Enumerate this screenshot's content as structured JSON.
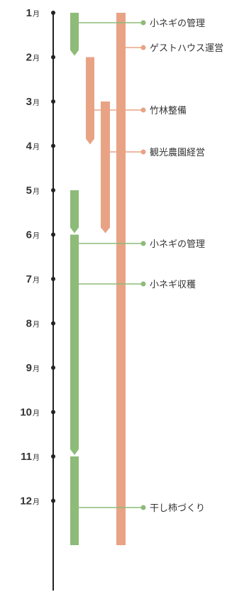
{
  "colors": {
    "green": "#8dbb78",
    "orange": "#e8a385",
    "axis": "#222222",
    "text": "#333333"
  },
  "month_unit": "月",
  "months": [
    {
      "num": "1"
    },
    {
      "num": "2"
    },
    {
      "num": "3"
    },
    {
      "num": "4"
    },
    {
      "num": "5"
    },
    {
      "num": "6"
    },
    {
      "num": "7"
    },
    {
      "num": "8"
    },
    {
      "num": "9"
    },
    {
      "num": "10"
    },
    {
      "num": "11"
    },
    {
      "num": "12"
    }
  ],
  "bars": [
    {
      "id": "green-negi-1",
      "color": "green",
      "start": 1.0,
      "end": 2.0,
      "arrow": true
    },
    {
      "id": "green-negi-2",
      "color": "green",
      "start": 5.0,
      "end": 6.0,
      "arrow": true
    },
    {
      "id": "green-negi-3",
      "color": "green",
      "start": 6.0,
      "end": 11.0,
      "arrow": true
    },
    {
      "id": "green-kaki",
      "color": "green",
      "start": 11.0,
      "end": 13.0,
      "arrow": false
    },
    {
      "id": "orange-guesthouse",
      "color": "orange",
      "start": 1.0,
      "end": 13.0,
      "arrow": false
    },
    {
      "id": "orange-bamboo",
      "color": "orange",
      "start": 2.0,
      "end": 4.0,
      "arrow": true
    },
    {
      "id": "orange-farm",
      "color": "orange",
      "start": 3.0,
      "end": 6.0,
      "arrow": true
    }
  ],
  "labels": [
    {
      "text": "小ネギの管理",
      "color": "green",
      "bar": "green-negi-1"
    },
    {
      "text": "ゲストハウス運営",
      "color": "orange",
      "bar": "orange-guesthouse"
    },
    {
      "text": "竹林整備",
      "color": "orange",
      "bar": "orange-bamboo"
    },
    {
      "text": "観光農園経営",
      "color": "orange",
      "bar": "orange-farm"
    },
    {
      "text": "小ネギの管理",
      "color": "green",
      "bar": "green-negi-2"
    },
    {
      "text": "小ネギ収穫",
      "color": "green",
      "bar": "green-negi-3"
    },
    {
      "text": "干し柿づくり",
      "color": "green",
      "bar": "green-kaki"
    }
  ]
}
